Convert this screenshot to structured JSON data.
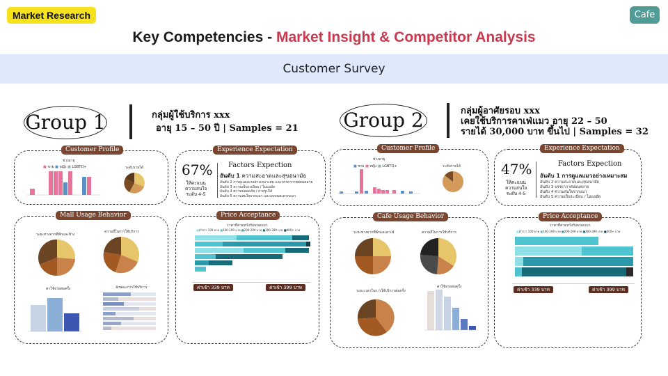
{
  "tags": {
    "left": "Market Research",
    "right": "Cafe"
  },
  "title": {
    "prefix": "Key Competencies - ",
    "accent": "Market Insight & Competitor Analysis"
  },
  "band": "Customer Survey",
  "group1": {
    "label": "Group 1",
    "lines": [
      "กลุ่มผู้ใช้บริการ xxx",
      "อายุ 15 – 50 ปี | Samples = 21"
    ],
    "panels": {
      "profile": "Customer Profile",
      "expect": "Experience Expectation",
      "usage": "Mall Usage Behavior",
      "price": "Price Acceptance"
    },
    "profile_chart_title": "ช่วงอายุ",
    "profile_legend": [
      "ชาย",
      "หญิง",
      "LGBTQ+"
    ],
    "profile_pie_title": "ระดับรายได้",
    "pct": "67%",
    "pct_desc": [
      "ให้คะแนน",
      "ความสนใจ",
      "ระดับ 4-5"
    ],
    "factors_head": "Factors Expection",
    "rank1_prefix": "อันดับ 1",
    "rank1": "ความสะอาดและสุขอนามัย",
    "ranks": [
      "อันดับ 2 การดูแลแมวอย่างเหมาะสม และบรรยากาศผ่อนคลาย",
      "อันดับ 3 ความเป็นระเบียบ / ไม่แออัด",
      "อันดับ 4 ความปลอดภัย / ถ่ายรูปได้",
      "อันดับ 5 ความสนใจจากแมว และแบบนสะดวกแมว"
    ],
    "usage_titles": [
      "ระยะทางจากที่พักและห้าง",
      "ความถี่ในการใช้บริการ",
      "ค่าใช้จ่ายต่อครั้ง",
      "ลักษณะการใช้บริการ"
    ],
    "price_title": "ราคาที่คาดหวังกับขนมแมว",
    "price_legend": [
      "ต่ำกว่า 100 บาท",
      "100-199 บาท",
      "200-299 บาท",
      "300-399 บาท",
      "400+ บาท"
    ],
    "badges": [
      "ค่าเข้า 339 บาท",
      "ค่าเข้า 399 บาท"
    ]
  },
  "group2": {
    "label": "Group 2",
    "lines": [
      "กลุ่มผู้อาศัยรอบ xxx",
      "เคยใช้บริการคาเฟ่แมว อายุ 22 – 50",
      "รายได้ 30,000 บาท ขึ้นไป | Samples = 32"
    ],
    "panels": {
      "profile": "Customer Profile",
      "expect": "Experience Expectation",
      "usage": "Cafe Usage Behavior",
      "price": "Price Acceptance"
    },
    "profile_chart_title": "ช่วงอายุ",
    "profile_legend": [
      "ชาย",
      "หญิง",
      "LGBTQ+"
    ],
    "profile_pie_title": "ระดับรายได้",
    "pct": "47%",
    "pct_desc": [
      "ให้คะแนน",
      "ความสนใจ",
      "ระดับ 4-5"
    ],
    "factors_head": "Factors Expection",
    "rank1_prefix": "อันดับ 1",
    "rank1": "การดูแลแมวอย่างเหมาะสม",
    "ranks": [
      "อันดับ 2 ความสะอาดและสุขอนามัย",
      "อันดับ 3 บรรยากาศผ่อนคลาย",
      "อันดับ 4 ความสนใจจากแมว",
      "อันดับ 5 ความเป็นระเบียบ / ไม่แออัด"
    ],
    "usage_titles": [
      "ระยะทางจากที่พักและคาเฟ่",
      "ความถี่ในการใช้บริการ",
      "ระยะเวลาในการใช้บริการต่อครั้ง",
      "ค่าใช้จ่ายต่อครั้ง"
    ],
    "price_title": "ราคาที่คาดหวังกับขนมแมว",
    "price_legend": [
      "ต่ำกว่า 100 บาท",
      "100-199 บาท",
      "200-299 บาท",
      "300-399 บาท",
      "400+ บาท"
    ],
    "badges": [
      "ค่าเข้า 339 บาท",
      "ค่าเข้า 399 บาท"
    ]
  },
  "colors": {
    "pink": "#e8739b",
    "blue": "#5b8fc7",
    "brown": "#6b4423",
    "tan": "#d39a5a",
    "gold": "#e7c56a",
    "teal": "#4fc3cf",
    "darkteal": "#176b78",
    "accent": "#c9384d"
  }
}
